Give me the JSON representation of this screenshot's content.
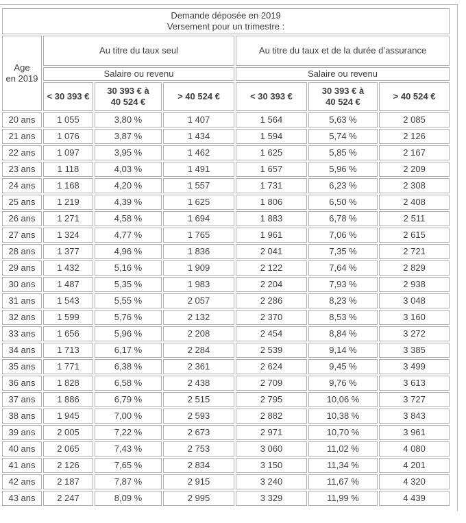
{
  "colors": {
    "border": "#aeaeae",
    "text": "#3e3e3e",
    "frame_line": "#bdbdbd",
    "background": "#ffffff"
  },
  "chart_data": {
    "type": "table",
    "title": "Demande déposée en 2019",
    "subtitle": "Versement pour un trimestre :",
    "row_header": "Age en 2019",
    "column_groups": [
      "Au titre du taux seul",
      "Au titre du taux et de la durée d’assurance"
    ],
    "subgroup_label": "Salaire ou revenu",
    "columns": [
      "< 30 393 €",
      "30 393 € à 40 524 €",
      "> 40 524 €"
    ],
    "rows": [
      {
        "age": "20 ans",
        "values": [
          "1 055",
          "3,80 %",
          "1 407",
          "1 564",
          "5,63 %",
          "2 085"
        ]
      },
      {
        "age": "21 ans",
        "values": [
          "1 076",
          "3,87 %",
          "1 434",
          "1 594",
          "5,74 %",
          "2 126"
        ]
      },
      {
        "age": "22 ans",
        "values": [
          "1 097",
          "3,95 %",
          "1 462",
          "1 625",
          "5,85 %",
          "2 167"
        ]
      },
      {
        "age": "23 ans",
        "values": [
          "1 118",
          "4,03 %",
          "1 491",
          "1 657",
          "5,96 %",
          "2 209"
        ]
      },
      {
        "age": "24 ans",
        "values": [
          "1 168",
          "4,20 %",
          "1 557",
          "1 731",
          "6,23 %",
          "2 308"
        ]
      },
      {
        "age": "25 ans",
        "values": [
          "1 219",
          "4,39 %",
          "1 625",
          "1 806",
          "6,50 %",
          "2 408"
        ]
      },
      {
        "age": "26 ans",
        "values": [
          "1 271",
          "4,58 %",
          "1 694",
          "1 883",
          "6,78 %",
          "2 511"
        ]
      },
      {
        "age": "27 ans",
        "values": [
          "1 324",
          "4,77 %",
          "1 765",
          "1 961",
          "7,06 %",
          "2 615"
        ]
      },
      {
        "age": "28 ans",
        "values": [
          "1 377",
          "4,96 %",
          "1 836",
          "2 041",
          "7,35 %",
          "2 721"
        ]
      },
      {
        "age": "29 ans",
        "values": [
          "1 432",
          "5,16 %",
          "1 909",
          "2 122",
          "7,64 %",
          "2 829"
        ]
      },
      {
        "age": "30 ans",
        "values": [
          "1 487",
          "5,35 %",
          "1 983",
          "2 204",
          "7,93 %",
          "2 938"
        ]
      },
      {
        "age": "31 ans",
        "values": [
          "1 543",
          "5,55 %",
          "2 057",
          "2 286",
          "8,23 %",
          "3 048"
        ]
      },
      {
        "age": "32 ans",
        "values": [
          "1 599",
          "5,76 %",
          "2 132",
          "2 370",
          "8,53 %",
          "3 160"
        ]
      },
      {
        "age": "33 ans",
        "values": [
          "1 656",
          "5,96 %",
          "2 208",
          "2 454",
          "8,84 %",
          "3 272"
        ]
      },
      {
        "age": "34 ans",
        "values": [
          "1 713",
          "6,17 %",
          "2 284",
          "2 539",
          "9,14 %",
          "3 385"
        ]
      },
      {
        "age": "35 ans",
        "values": [
          "1 771",
          "6,38 %",
          "2 361",
          "2 624",
          "9,45 %",
          "3 499"
        ]
      },
      {
        "age": "36 ans",
        "values": [
          "1 828",
          "6,58 %",
          "2 438",
          "2 709",
          "9,76 %",
          "3 613"
        ]
      },
      {
        "age": "37 ans",
        "values": [
          "1 886",
          "6,79 %",
          "2 515",
          "2 795",
          "10,06 %",
          "3 727"
        ]
      },
      {
        "age": "38 ans",
        "values": [
          "1 945",
          "7,00 %",
          "2 593",
          "2 882",
          "10,38 %",
          "3 843"
        ]
      },
      {
        "age": "39 ans",
        "values": [
          "2 005",
          "7,22 %",
          "2 673",
          "2 971",
          "10,70 %",
          "3 961"
        ]
      },
      {
        "age": "40 ans",
        "values": [
          "2 065",
          "7,43 %",
          "2 753",
          "3 060",
          "11,02 %",
          "4 080"
        ]
      },
      {
        "age": "41 ans",
        "values": [
          "2 126",
          "7,65 %",
          "2 834",
          "3 150",
          "11,34 %",
          "4 201"
        ]
      },
      {
        "age": "42 ans",
        "values": [
          "2 187",
          "7,87 %",
          "2 915",
          "3 240",
          "11,67 %",
          "4 320"
        ]
      },
      {
        "age": "43 ans",
        "values": [
          "2 247",
          "8,09 %",
          "2 995",
          "3 329",
          "11,99 %",
          "4 439"
        ]
      }
    ]
  }
}
